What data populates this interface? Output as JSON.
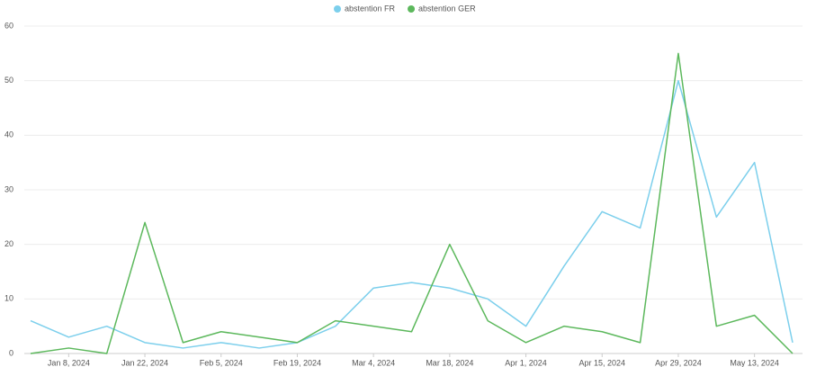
{
  "chart_data": {
    "type": "line",
    "categories": [
      null,
      "Jan 8, 2024",
      null,
      "Jan 22, 2024",
      null,
      "Feb 5, 2024",
      null,
      "Feb 19, 2024",
      null,
      "Mar 4, 2024",
      null,
      "Mar 18, 2024",
      null,
      "Apr 1, 2024",
      null,
      "Apr 15, 2024",
      null,
      "Apr 29, 2024",
      null,
      "May 13, 2024",
      null
    ],
    "series": [
      {
        "name": "abstention FR",
        "color": "#7ccfec",
        "values": [
          6,
          3,
          5,
          2,
          1,
          2,
          1,
          2,
          5,
          12,
          13,
          12,
          10,
          5,
          16,
          26,
          23,
          50,
          25,
          35,
          2
        ]
      },
      {
        "name": "abstention GER",
        "color": "#5cb85c",
        "values": [
          0,
          1,
          0,
          24,
          2,
          4,
          3,
          2,
          6,
          5,
          4,
          20,
          6,
          2,
          5,
          4,
          2,
          55,
          5,
          7,
          0
        ]
      }
    ],
    "ylim": [
      0,
      60
    ],
    "yticks": [
      0,
      10,
      20,
      30,
      40,
      50,
      60
    ],
    "grid": true,
    "legend": "top"
  }
}
